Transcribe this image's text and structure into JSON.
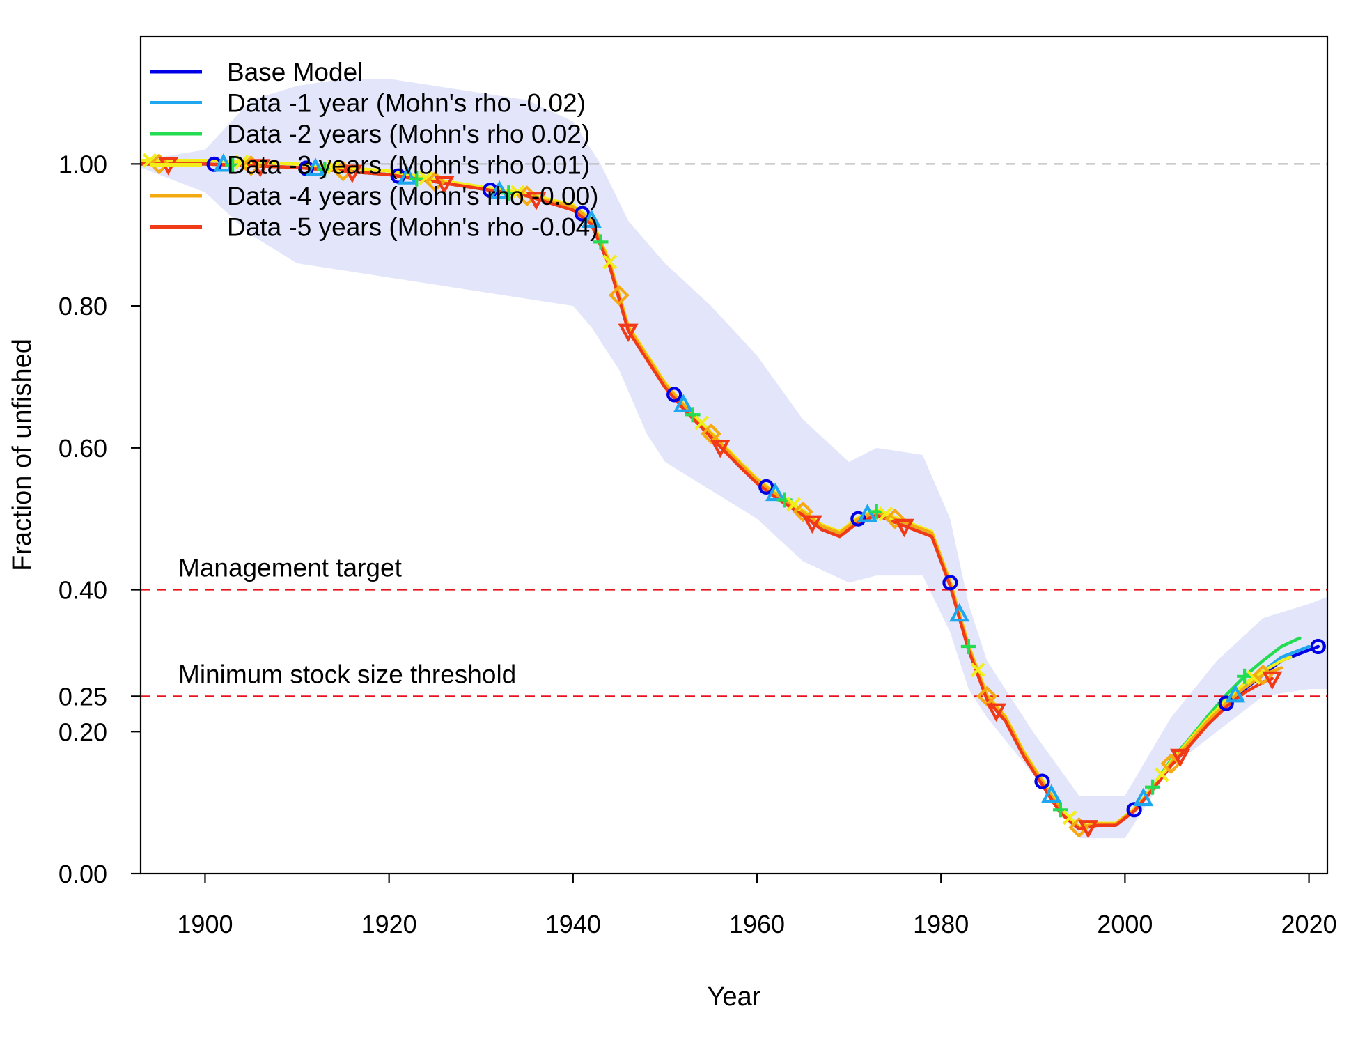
{
  "chart_data": {
    "type": "line",
    "title": "",
    "xlabel": "Year",
    "ylabel": "Fraction of unfished",
    "xlim": [
      1893,
      2022
    ],
    "ylim": [
      0,
      1.18
    ],
    "x_ticks": [
      "1900",
      "1920",
      "1940",
      "1960",
      "1980",
      "2000",
      "2020"
    ],
    "y_ticks": [
      "0.00",
      "0.20",
      "0.25",
      "0.40",
      "0.60",
      "0.80",
      "1.00"
    ],
    "grid": false,
    "legend_position": "top-left",
    "reference_lines": [
      {
        "y": 1.0,
        "label": "",
        "color": "#bbbbbb"
      },
      {
        "y": 0.4,
        "label": "Management target",
        "color": "#e8141c"
      },
      {
        "y": 0.25,
        "label": "Minimum stock size threshold",
        "color": "#e8141c"
      }
    ],
    "uncertainty_band": {
      "series": "Base Model",
      "color": "#e3e6fb",
      "upper": [
        [
          1893,
          1.005
        ],
        [
          1900,
          1.02
        ],
        [
          1905,
          1.09
        ],
        [
          1910,
          1.11
        ],
        [
          1915,
          1.12
        ],
        [
          1920,
          1.12
        ],
        [
          1925,
          1.11
        ],
        [
          1930,
          1.1
        ],
        [
          1935,
          1.09
        ],
        [
          1940,
          1.06
        ],
        [
          1943,
          1.0
        ],
        [
          1946,
          0.92
        ],
        [
          1950,
          0.86
        ],
        [
          1955,
          0.8
        ],
        [
          1960,
          0.73
        ],
        [
          1965,
          0.64
        ],
        [
          1970,
          0.58
        ],
        [
          1973,
          0.6
        ],
        [
          1978,
          0.59
        ],
        [
          1981,
          0.5
        ],
        [
          1983,
          0.38
        ],
        [
          1985,
          0.3
        ],
        [
          1990,
          0.2
        ],
        [
          1995,
          0.11
        ],
        [
          2000,
          0.11
        ],
        [
          2005,
          0.22
        ],
        [
          2010,
          0.3
        ],
        [
          2015,
          0.36
        ],
        [
          2020,
          0.38
        ],
        [
          2022,
          0.39
        ]
      ],
      "lower": [
        [
          1893,
          0.995
        ],
        [
          1900,
          0.96
        ],
        [
          1905,
          0.9
        ],
        [
          1910,
          0.86
        ],
        [
          1920,
          0.84
        ],
        [
          1930,
          0.82
        ],
        [
          1940,
          0.8
        ],
        [
          1942,
          0.77
        ],
        [
          1945,
          0.71
        ],
        [
          1948,
          0.62
        ],
        [
          1950,
          0.58
        ],
        [
          1955,
          0.54
        ],
        [
          1960,
          0.5
        ],
        [
          1965,
          0.44
        ],
        [
          1970,
          0.41
        ],
        [
          1973,
          0.42
        ],
        [
          1978,
          0.42
        ],
        [
          1981,
          0.34
        ],
        [
          1983,
          0.26
        ],
        [
          1985,
          0.22
        ],
        [
          1990,
          0.14
        ],
        [
          1995,
          0.05
        ],
        [
          2000,
          0.05
        ],
        [
          2005,
          0.15
        ],
        [
          2010,
          0.2
        ],
        [
          2015,
          0.25
        ],
        [
          2020,
          0.26
        ],
        [
          2022,
          0.26
        ]
      ]
    },
    "series": [
      {
        "name": "Base Model",
        "color": "#0000e6",
        "marker": "circle",
        "marker_start": 1901,
        "x": [
          1893,
          1900,
          1910,
          1920,
          1925,
          1930,
          1935,
          1940,
          1942,
          1944,
          1946,
          1948,
          1950,
          1952,
          1955,
          1958,
          1960,
          1962,
          1965,
          1967,
          1969,
          1971,
          1973,
          1975,
          1977,
          1979,
          1981,
          1983,
          1985,
          1987,
          1989,
          1991,
          1993,
          1995,
          1997,
          1999,
          2001,
          2003,
          2005,
          2007,
          2009,
          2011,
          2013,
          2015,
          2017,
          2019,
          2021
        ],
        "y": [
          1.0,
          1.0,
          0.995,
          0.985,
          0.975,
          0.965,
          0.955,
          0.94,
          0.92,
          0.86,
          0.77,
          0.73,
          0.69,
          0.66,
          0.62,
          0.58,
          0.555,
          0.535,
          0.51,
          0.49,
          0.48,
          0.5,
          0.51,
          0.5,
          0.49,
          0.48,
          0.41,
          0.32,
          0.25,
          0.22,
          0.17,
          0.13,
          0.09,
          0.065,
          0.07,
          0.07,
          0.09,
          0.12,
          0.155,
          0.185,
          0.215,
          0.24,
          0.26,
          0.28,
          0.3,
          0.31,
          0.32
        ]
      },
      {
        "name": "Data -1 year (Mohn's rho -0.02)",
        "color": "#1ea6ee",
        "marker": "triangle",
        "marker_start": 1902,
        "x": [
          1893,
          1900,
          1910,
          1920,
          1925,
          1930,
          1935,
          1940,
          1942,
          1944,
          1946,
          1948,
          1950,
          1952,
          1955,
          1958,
          1960,
          1962,
          1965,
          1967,
          1969,
          1971,
          1973,
          1975,
          1977,
          1979,
          1981,
          1983,
          1985,
          1987,
          1989,
          1991,
          1993,
          1995,
          1997,
          1999,
          2001,
          2003,
          2005,
          2007,
          2009,
          2011,
          2013,
          2015,
          2017,
          2019,
          2020
        ],
        "y": [
          1.0,
          1.0,
          0.995,
          0.985,
          0.975,
          0.965,
          0.955,
          0.94,
          0.92,
          0.86,
          0.77,
          0.73,
          0.69,
          0.66,
          0.62,
          0.58,
          0.555,
          0.535,
          0.51,
          0.49,
          0.48,
          0.5,
          0.51,
          0.5,
          0.49,
          0.48,
          0.41,
          0.32,
          0.25,
          0.22,
          0.17,
          0.13,
          0.09,
          0.065,
          0.07,
          0.07,
          0.09,
          0.12,
          0.155,
          0.185,
          0.215,
          0.24,
          0.262,
          0.285,
          0.305,
          0.315,
          0.32
        ]
      },
      {
        "name": "Data -2 years (Mohn's rho 0.02)",
        "color": "#23dc52",
        "marker": "plus",
        "marker_start": 1903,
        "x": [
          1893,
          1900,
          1910,
          1920,
          1925,
          1930,
          1935,
          1940,
          1942,
          1944,
          1946,
          1948,
          1950,
          1952,
          1955,
          1958,
          1960,
          1962,
          1965,
          1967,
          1969,
          1971,
          1973,
          1975,
          1977,
          1979,
          1981,
          1983,
          1985,
          1987,
          1989,
          1991,
          1993,
          1995,
          1997,
          1999,
          2001,
          2003,
          2005,
          2007,
          2009,
          2011,
          2013,
          2015,
          2017,
          2019
        ],
        "y": [
          1.0,
          1.0,
          0.995,
          0.985,
          0.975,
          0.965,
          0.955,
          0.94,
          0.92,
          0.86,
          0.77,
          0.73,
          0.69,
          0.66,
          0.62,
          0.58,
          0.555,
          0.535,
          0.51,
          0.49,
          0.48,
          0.5,
          0.51,
          0.5,
          0.49,
          0.48,
          0.41,
          0.32,
          0.25,
          0.22,
          0.17,
          0.13,
          0.09,
          0.065,
          0.07,
          0.07,
          0.09,
          0.122,
          0.16,
          0.19,
          0.222,
          0.252,
          0.278,
          0.3,
          0.32,
          0.332
        ]
      },
      {
        "name": "Data -3 years (Mohn's rho 0.01)",
        "color": "#f2ee1a",
        "marker": "x",
        "marker_start": 1894,
        "x": [
          1893,
          1900,
          1910,
          1920,
          1925,
          1930,
          1935,
          1940,
          1942,
          1944,
          1946,
          1948,
          1950,
          1952,
          1955,
          1958,
          1960,
          1962,
          1965,
          1967,
          1969,
          1971,
          1973,
          1975,
          1977,
          1979,
          1981,
          1983,
          1985,
          1987,
          1989,
          1991,
          1993,
          1995,
          1997,
          1999,
          2001,
          2003,
          2005,
          2007,
          2009,
          2011,
          2013,
          2015,
          2017,
          2018
        ],
        "y": [
          1.005,
          1.005,
          1.0,
          0.99,
          0.978,
          0.968,
          0.958,
          0.942,
          0.922,
          0.862,
          0.772,
          0.732,
          0.692,
          0.662,
          0.622,
          0.582,
          0.557,
          0.537,
          0.512,
          0.492,
          0.482,
          0.502,
          0.512,
          0.502,
          0.492,
          0.482,
          0.412,
          0.322,
          0.252,
          0.222,
          0.172,
          0.132,
          0.092,
          0.066,
          0.071,
          0.071,
          0.091,
          0.121,
          0.158,
          0.188,
          0.218,
          0.245,
          0.268,
          0.285,
          0.3,
          0.305
        ]
      },
      {
        "name": "Data -4 years (Mohn's rho -0.00)",
        "color": "#f5a912",
        "marker": "diamond",
        "marker_start": 1895,
        "x": [
          1893,
          1900,
          1910,
          1920,
          1925,
          1930,
          1935,
          1940,
          1942,
          1944,
          1946,
          1948,
          1950,
          1952,
          1955,
          1958,
          1960,
          1962,
          1965,
          1967,
          1969,
          1971,
          1973,
          1975,
          1977,
          1979,
          1981,
          1983,
          1985,
          1987,
          1989,
          1991,
          1993,
          1995,
          1997,
          1999,
          2001,
          2003,
          2005,
          2007,
          2009,
          2011,
          2013,
          2015,
          2017
        ],
        "y": [
          1.0,
          1.0,
          0.995,
          0.985,
          0.975,
          0.965,
          0.955,
          0.94,
          0.92,
          0.86,
          0.77,
          0.73,
          0.69,
          0.66,
          0.62,
          0.58,
          0.555,
          0.535,
          0.51,
          0.49,
          0.48,
          0.5,
          0.51,
          0.5,
          0.49,
          0.48,
          0.41,
          0.32,
          0.25,
          0.22,
          0.17,
          0.13,
          0.09,
          0.065,
          0.07,
          0.07,
          0.09,
          0.12,
          0.155,
          0.185,
          0.215,
          0.24,
          0.262,
          0.28,
          0.29
        ]
      },
      {
        "name": "Data -5 years (Mohn's rho -0.04)",
        "color": "#f03a17",
        "marker": "triangle-down",
        "marker_start": 1896,
        "x": [
          1893,
          1900,
          1910,
          1920,
          1925,
          1930,
          1935,
          1940,
          1942,
          1944,
          1946,
          1948,
          1950,
          1952,
          1955,
          1958,
          1960,
          1962,
          1965,
          1967,
          1969,
          1971,
          1973,
          1975,
          1977,
          1979,
          1981,
          1983,
          1985,
          1987,
          1989,
          1991,
          1993,
          1995,
          1997,
          1999,
          2001,
          2003,
          2005,
          2007,
          2009,
          2011,
          2013,
          2015,
          2016
        ],
        "y": [
          1.0,
          1.0,
          0.995,
          0.985,
          0.975,
          0.965,
          0.955,
          0.935,
          0.915,
          0.855,
          0.765,
          0.725,
          0.685,
          0.655,
          0.615,
          0.575,
          0.55,
          0.53,
          0.505,
          0.485,
          0.475,
          0.495,
          0.505,
          0.495,
          0.485,
          0.475,
          0.405,
          0.315,
          0.245,
          0.215,
          0.165,
          0.125,
          0.085,
          0.063,
          0.068,
          0.068,
          0.088,
          0.118,
          0.152,
          0.18,
          0.21,
          0.235,
          0.255,
          0.27,
          0.275
        ]
      }
    ]
  }
}
